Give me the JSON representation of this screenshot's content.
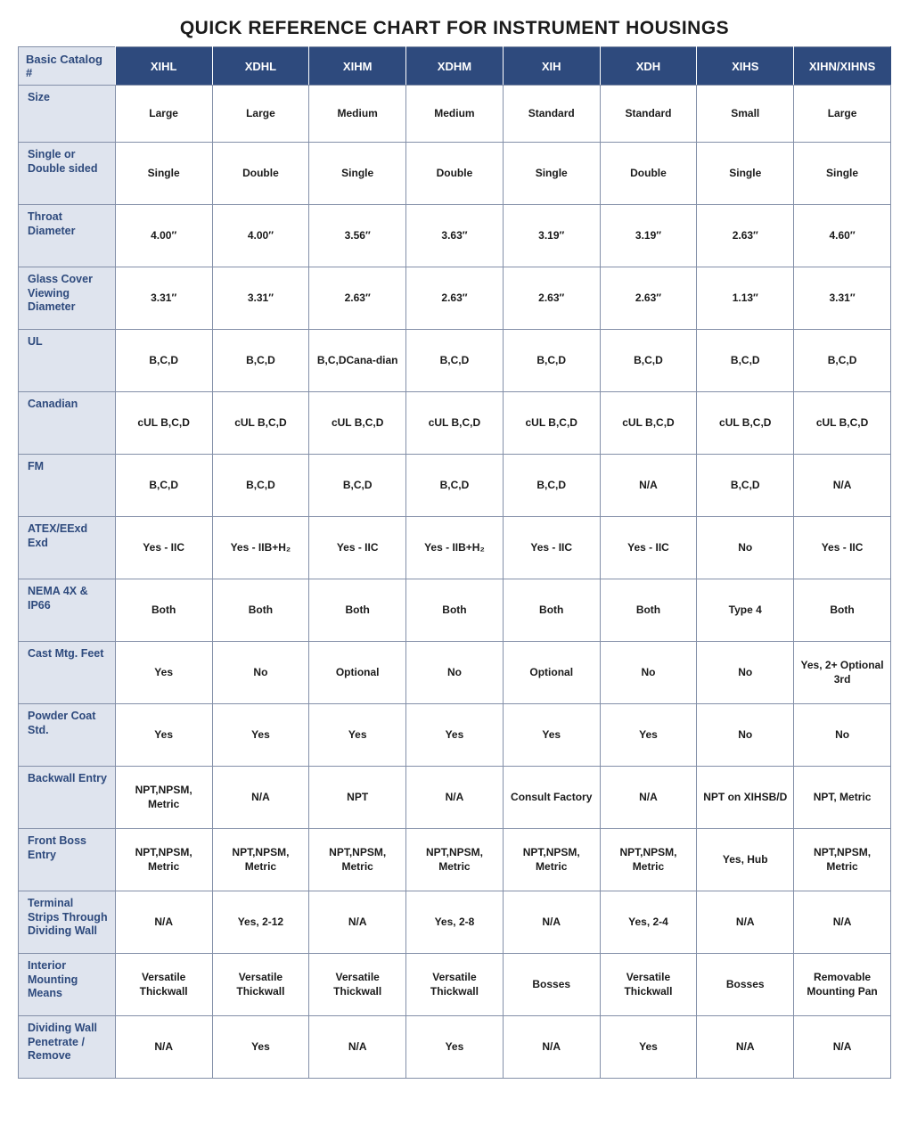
{
  "title": "QUICK REFERENCE CHART FOR INSTRUMENT HOUSINGS",
  "colors": {
    "header_bg": "#2e4a7d",
    "header_fg": "#ffffff",
    "rowlabel_bg": "#dfe4ee",
    "rowlabel_fg": "#2e4a7d",
    "border": "#838fa8",
    "body_fg": "#1a1a1a"
  },
  "table": {
    "corner": "Basic Catalog #",
    "columns": [
      "XIHL",
      "XDHL",
      "XIHM",
      "XDHM",
      "XIH",
      "XDH",
      "XIHS",
      "XIHN/XIHNS"
    ],
    "rows": [
      {
        "label": "Size",
        "cells": [
          "Large",
          "Large",
          "Medium",
          "Medium",
          "Standard",
          "Standard",
          "Small",
          "Large"
        ]
      },
      {
        "label": "Single or Double sided",
        "cells": [
          "Single",
          "Double",
          "Single",
          "Double",
          "Single",
          "Double",
          "Single",
          "Single"
        ]
      },
      {
        "label": "Throat Diameter",
        "cells": [
          "4.00″",
          "4.00″",
          "3.56″",
          "3.63″",
          "3.19″",
          "3.19″",
          "2.63″",
          "4.60″"
        ]
      },
      {
        "label": "Glass Cover Viewing Diameter",
        "cells": [
          "3.31″",
          "3.31″",
          "2.63″",
          "2.63″",
          "2.63″",
          "2.63″",
          "1.13″",
          "3.31″"
        ]
      },
      {
        "label": "UL",
        "cells": [
          "B,C,D",
          "B,C,D",
          "B,C,DCana-dian",
          "B,C,D",
          "B,C,D",
          "B,C,D",
          "B,C,D",
          "B,C,D"
        ]
      },
      {
        "label": "Canadian",
        "cells": [
          "cUL  B,C,D",
          "cUL  B,C,D",
          "cUL  B,C,D",
          "cUL  B,C,D",
          "cUL  B,C,D",
          "cUL  B,C,D",
          "cUL  B,C,D",
          "cUL  B,C,D"
        ]
      },
      {
        "label": "FM",
        "cells": [
          "B,C,D",
          "B,C,D",
          "B,C,D",
          "B,C,D",
          "B,C,D",
          "N/A",
          "B,C,D",
          "N/A"
        ]
      },
      {
        "label": "ATEX/EExd  Exd",
        "cells": [
          "Yes - IIC",
          "Yes - IIB+H₂",
          "Yes - IIC",
          "Yes - IIB+H₂",
          "Yes - IIC",
          "Yes - IIC",
          "No",
          "Yes - IIC"
        ]
      },
      {
        "label": "NEMA 4X & IP66",
        "cells": [
          "Both",
          "Both",
          "Both",
          "Both",
          "Both",
          "Both",
          "Type 4",
          "Both"
        ]
      },
      {
        "label": "Cast Mtg. Feet",
        "cells": [
          "Yes",
          "No",
          "Optional",
          "No",
          "Optional",
          "No",
          "No",
          "Yes, 2+ Optional 3rd"
        ]
      },
      {
        "label": "Powder Coat Std.",
        "cells": [
          "Yes",
          "Yes",
          "Yes",
          "Yes",
          "Yes",
          "Yes",
          "No",
          "No"
        ]
      },
      {
        "label": "Backwall Entry",
        "cells": [
          "NPT,NPSM, Metric",
          "N/A",
          "NPT",
          "N/A",
          "Consult Factory",
          "N/A",
          "NPT on XIHSB/D",
          "NPT, Metric"
        ]
      },
      {
        "label": "Front Boss Entry",
        "cells": [
          "NPT,NPSM, Metric",
          "NPT,NPSM, Metric",
          "NPT,NPSM, Metric",
          "NPT,NPSM, Metric",
          "NPT,NPSM, Metric",
          "NPT,NPSM, Metric",
          "Yes, Hub",
          "NPT,NPSM, Metric"
        ]
      },
      {
        "label": "Terminal Strips Through Dividing Wall",
        "cells": [
          "N/A",
          "Yes, 2-12",
          "N/A",
          "Yes, 2-8",
          "N/A",
          "Yes, 2-4",
          "N/A",
          "N/A"
        ]
      },
      {
        "label": "Interior Mounting Means",
        "cells": [
          "Versatile Thickwall",
          "Versatile Thickwall",
          "Versatile Thickwall",
          "Versatile Thickwall",
          "Bosses",
          "Versatile Thickwall",
          "Bosses",
          "Removable Mounting Pan"
        ]
      },
      {
        "label": "Dividing Wall Penetrate / Remove",
        "cells": [
          "N/A",
          "Yes",
          "N/A",
          "Yes",
          "N/A",
          "Yes",
          "N/A",
          "N/A"
        ]
      }
    ]
  }
}
